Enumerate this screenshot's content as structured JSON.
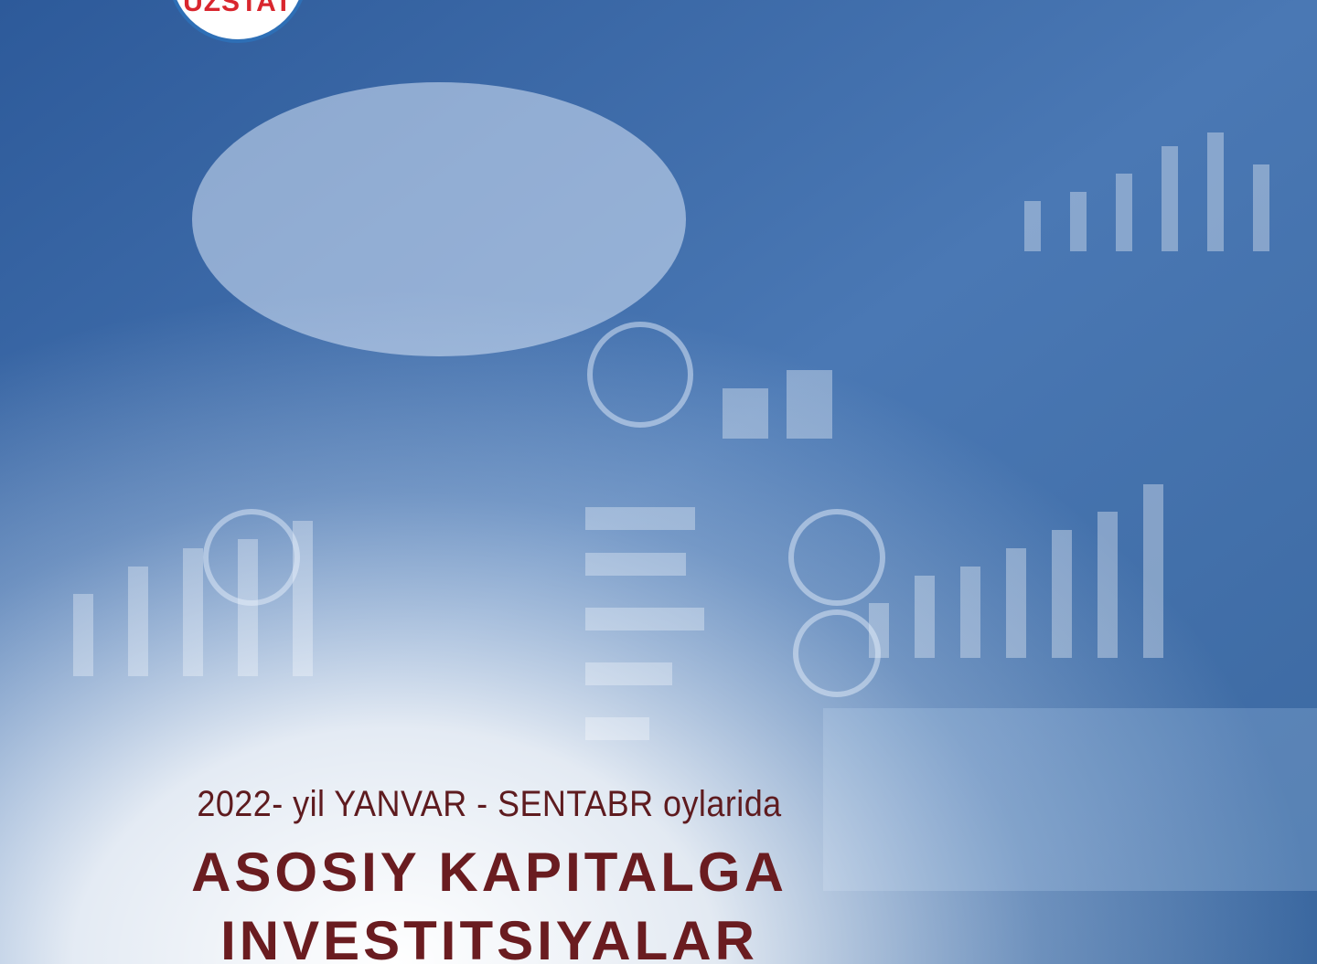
{
  "logo": {
    "text": "UZSTAT"
  },
  "cover": {
    "subtitle": "2022- yil YANVAR - SENTABR oylarida",
    "title_line1": "ASOSIY KAPITALGA",
    "title_line2": "INVESTITSIYALAR"
  }
}
